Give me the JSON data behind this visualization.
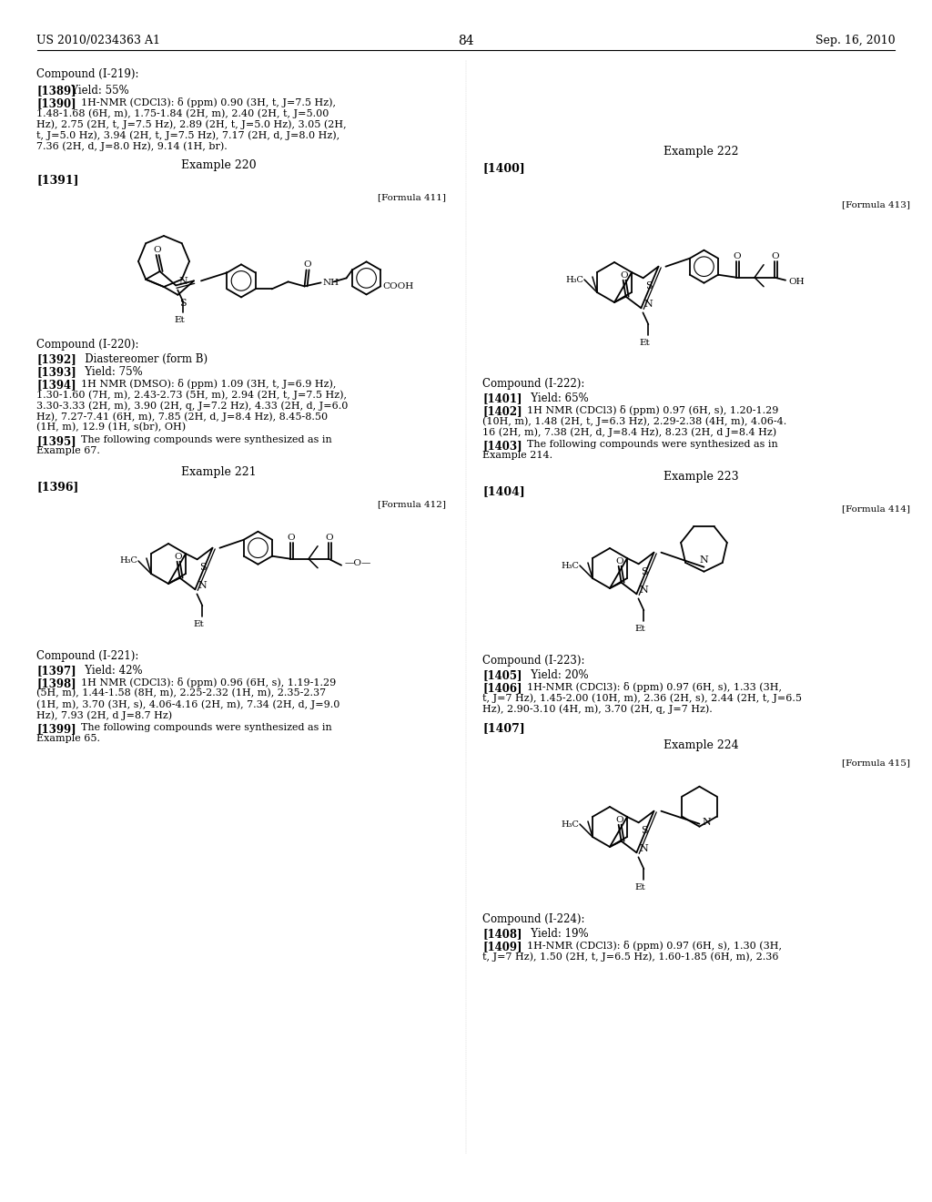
{
  "bg": "#ffffff",
  "header_left": "US 2010/0234363 A1",
  "header_right": "Sep. 16, 2010",
  "page_num": "84"
}
